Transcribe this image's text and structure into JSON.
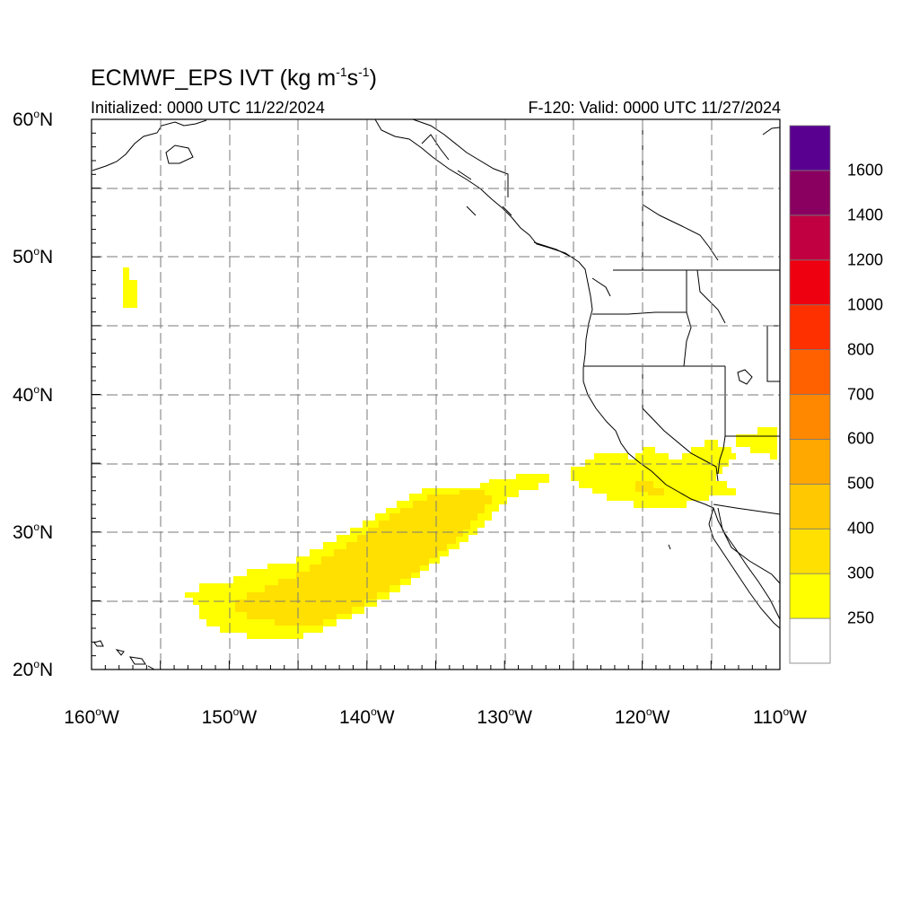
{
  "title": {
    "main": "ECMWF_EPS IVT (kg m",
    "sup1": "-1",
    "mid": "s",
    "sup2": "-1",
    "end": ")"
  },
  "subtitle": {
    "initialized": "Initialized: 0000 UTC 11/22/2024",
    "valid": "F-120: Valid: 0000 UTC 11/27/2024"
  },
  "map": {
    "lon_range": [
      -160,
      -110
    ],
    "lat_range": [
      20,
      60
    ],
    "lat_ticks": [
      {
        "value": 60,
        "num": "60",
        "unit": "o",
        "hemi": "N"
      },
      {
        "value": 50,
        "num": "50",
        "unit": "o",
        "hemi": "N"
      },
      {
        "value": 40,
        "num": "40",
        "unit": "o",
        "hemi": "N"
      },
      {
        "value": 30,
        "num": "30",
        "unit": "o",
        "hemi": "N"
      },
      {
        "value": 20,
        "num": "20",
        "unit": "o",
        "hemi": "N"
      }
    ],
    "lon_ticks": [
      {
        "value": -160,
        "num": "160",
        "unit": "o",
        "hemi": "W"
      },
      {
        "value": -150,
        "num": "150",
        "unit": "o",
        "hemi": "W"
      },
      {
        "value": -140,
        "num": "140",
        "unit": "o",
        "hemi": "W"
      },
      {
        "value": -130,
        "num": "130",
        "unit": "o",
        "hemi": "W"
      },
      {
        "value": -120,
        "num": "120",
        "unit": "o",
        "hemi": "W"
      },
      {
        "value": -110,
        "num": "110",
        "unit": "o",
        "hemi": "W"
      }
    ],
    "gridlines": "dashed, every 5 degrees"
  },
  "colorbar": {
    "labels": [
      "1600",
      "1400",
      "1200",
      "1000",
      "800",
      "700",
      "600",
      "500",
      "400",
      "300",
      "250"
    ],
    "colors": [
      "#ffffff",
      "#ffff00",
      "#ffe000",
      "#ffc800",
      "#ffa800",
      "#ff8800",
      "#ff6000",
      "#ff3000",
      "#ee0010",
      "#c00040",
      "#8a0060",
      "#5a0090"
    ]
  },
  "ivt_colors": {
    "c250": "#ffff00",
    "c300": "#ffe000"
  }
}
